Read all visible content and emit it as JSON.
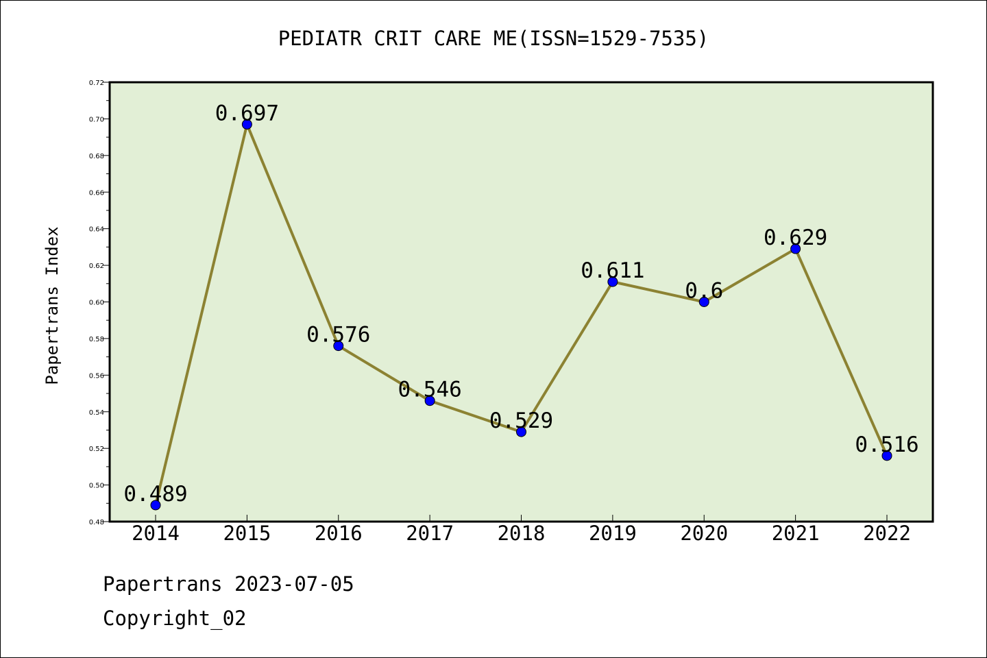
{
  "chart_data": {
    "type": "line",
    "title": "PEDIATR CRIT CARE ME(ISSN=1529-7535)",
    "xlabel": "",
    "ylabel": "Papertrans Index",
    "categories": [
      "2014",
      "2015",
      "2016",
      "2017",
      "2018",
      "2019",
      "2020",
      "2021",
      "2022"
    ],
    "series": [
      {
        "values": [
          0.489,
          0.697,
          0.576,
          0.546,
          0.529,
          0.611,
          0.6,
          0.629,
          0.516
        ],
        "labels": [
          "0.489",
          "0.697",
          "0.576",
          "0.546",
          "0.529",
          "0.611",
          "0.6",
          "0.629",
          "0.516"
        ]
      }
    ],
    "ylim": [
      0.48,
      0.72
    ],
    "yticks": [
      "0.48",
      "0.50",
      "0.52",
      "0.54",
      "0.56",
      "0.58",
      "0.60",
      "0.62",
      "0.64",
      "0.66",
      "0.68",
      "0.70",
      "0.72"
    ],
    "colors": {
      "plot_background": "#e2efd6",
      "line": "#8c8232",
      "marker": "#0000ff"
    },
    "grid": false
  },
  "footer": {
    "line1": "Papertrans 2023-07-05",
    "line2": "Copyright_02"
  }
}
